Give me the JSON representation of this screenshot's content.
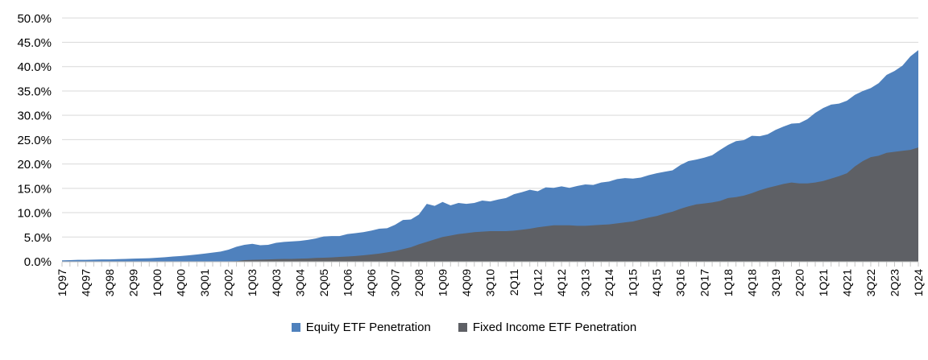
{
  "chart_data": {
    "type": "area",
    "title": "",
    "xlabel": "",
    "ylabel": "",
    "ylim": [
      0,
      50
    ],
    "y_tick_step": 5,
    "y_tick_labels": [
      "0.0%",
      "5.0%",
      "10.0%",
      "15.0%",
      "20.0%",
      "25.0%",
      "30.0%",
      "35.0%",
      "40.0%",
      "45.0%",
      "50.0%"
    ],
    "grid": true,
    "legend_position": "bottom",
    "overlay": true,
    "x_tick_labels": [
      "1Q97",
      "4Q97",
      "3Q98",
      "2Q99",
      "1Q00",
      "4Q00",
      "3Q01",
      "2Q02",
      "1Q03",
      "4Q03",
      "3Q04",
      "2Q05",
      "1Q06",
      "4Q06",
      "3Q07",
      "2Q08",
      "1Q09",
      "4Q09",
      "3Q10",
      "2Q11",
      "1Q12",
      "4Q12",
      "3Q13",
      "2Q14",
      "1Q15",
      "4Q15",
      "3Q16",
      "2Q17",
      "1Q18",
      "4Q18",
      "3Q19",
      "2Q20",
      "1Q21",
      "4Q21",
      "3Q22",
      "2Q23",
      "1Q24"
    ],
    "x_tick_label_every": 3,
    "quarters": [
      "1Q97",
      "2Q97",
      "3Q97",
      "4Q97",
      "1Q98",
      "2Q98",
      "3Q98",
      "4Q98",
      "1Q99",
      "2Q99",
      "3Q99",
      "4Q99",
      "1Q00",
      "2Q00",
      "3Q00",
      "4Q00",
      "1Q01",
      "2Q01",
      "3Q01",
      "4Q01",
      "1Q02",
      "2Q02",
      "3Q02",
      "4Q02",
      "1Q03",
      "2Q03",
      "3Q03",
      "4Q03",
      "1Q04",
      "2Q04",
      "3Q04",
      "4Q04",
      "1Q05",
      "2Q05",
      "3Q05",
      "4Q05",
      "1Q06",
      "2Q06",
      "3Q06",
      "4Q06",
      "1Q07",
      "2Q07",
      "3Q07",
      "4Q07",
      "1Q08",
      "2Q08",
      "3Q08",
      "4Q08",
      "1Q09",
      "2Q09",
      "3Q09",
      "4Q09",
      "1Q10",
      "2Q10",
      "3Q10",
      "4Q10",
      "1Q11",
      "2Q11",
      "3Q11",
      "4Q11",
      "1Q12",
      "2Q12",
      "3Q12",
      "4Q12",
      "1Q13",
      "2Q13",
      "3Q13",
      "4Q13",
      "1Q14",
      "2Q14",
      "3Q14",
      "4Q14",
      "1Q15",
      "2Q15",
      "3Q15",
      "4Q15",
      "1Q16",
      "2Q16",
      "3Q16",
      "4Q16",
      "1Q17",
      "2Q17",
      "3Q17",
      "4Q17",
      "1Q18",
      "2Q18",
      "3Q18",
      "4Q18",
      "1Q19",
      "2Q19",
      "3Q19",
      "4Q19",
      "1Q20",
      "2Q20",
      "3Q20",
      "4Q20",
      "1Q21",
      "2Q21",
      "3Q21",
      "4Q21",
      "1Q22",
      "2Q22",
      "3Q22",
      "4Q22",
      "1Q23",
      "2Q23",
      "3Q23",
      "4Q23",
      "1Q24"
    ],
    "series": [
      {
        "name": "Equity ETF Penetration",
        "color": "#4F81BD",
        "values": [
          0.2,
          0.25,
          0.3,
          0.3,
          0.35,
          0.4,
          0.4,
          0.45,
          0.5,
          0.55,
          0.6,
          0.65,
          0.75,
          0.85,
          1.0,
          1.1,
          1.25,
          1.4,
          1.6,
          1.8,
          2.0,
          2.4,
          3.0,
          3.4,
          3.6,
          3.3,
          3.4,
          3.8,
          4.0,
          4.1,
          4.2,
          4.4,
          4.7,
          5.1,
          5.2,
          5.2,
          5.6,
          5.8,
          6.0,
          6.3,
          6.7,
          6.8,
          7.5,
          8.5,
          8.6,
          9.6,
          11.8,
          11.4,
          12.2,
          11.5,
          12.0,
          11.8,
          12.0,
          12.5,
          12.3,
          12.7,
          13.0,
          13.8,
          14.2,
          14.7,
          14.4,
          15.2,
          15.1,
          15.4,
          15.1,
          15.5,
          15.8,
          15.7,
          16.2,
          16.4,
          16.9,
          17.1,
          17.0,
          17.2,
          17.7,
          18.1,
          18.4,
          18.7,
          19.8,
          20.6,
          20.9,
          21.3,
          21.8,
          22.9,
          23.9,
          24.7,
          24.9,
          25.8,
          25.7,
          26.1,
          27.0,
          27.7,
          28.3,
          28.4,
          29.2,
          30.5,
          31.5,
          32.2,
          32.4,
          33.0,
          34.2,
          35.0,
          35.6,
          36.6,
          38.3,
          39.1,
          40.2,
          42.1,
          43.4
        ]
      },
      {
        "name": "Fixed Income ETF Penetration",
        "color": "#5E6065",
        "values": [
          0,
          0,
          0,
          0,
          0,
          0,
          0,
          0,
          0,
          0,
          0,
          0,
          0,
          0,
          0,
          0,
          0,
          0,
          0,
          0,
          0,
          0,
          0.05,
          0.25,
          0.3,
          0.35,
          0.4,
          0.45,
          0.5,
          0.5,
          0.55,
          0.6,
          0.7,
          0.75,
          0.8,
          0.9,
          1.0,
          1.1,
          1.25,
          1.4,
          1.6,
          1.85,
          2.1,
          2.5,
          2.9,
          3.5,
          4.0,
          4.5,
          5.0,
          5.3,
          5.6,
          5.8,
          6.0,
          6.1,
          6.2,
          6.2,
          6.2,
          6.3,
          6.5,
          6.7,
          7.0,
          7.2,
          7.4,
          7.4,
          7.4,
          7.3,
          7.3,
          7.4,
          7.5,
          7.6,
          7.8,
          8.0,
          8.2,
          8.6,
          9.0,
          9.3,
          9.8,
          10.2,
          10.8,
          11.3,
          11.7,
          11.9,
          12.1,
          12.4,
          13.0,
          13.2,
          13.5,
          14.0,
          14.6,
          15.1,
          15.5,
          15.9,
          16.2,
          16.0,
          16.0,
          16.2,
          16.5,
          17.0,
          17.5,
          18.1,
          19.5,
          20.6,
          21.4,
          21.7,
          22.3,
          22.5,
          22.7,
          22.9,
          23.4
        ]
      }
    ]
  },
  "colors": {
    "gridline": "#d9d9d9",
    "axis_line": "#bfbfbf",
    "tick": "#c6c6c6",
    "label_text": "#000000",
    "background": "#ffffff"
  }
}
